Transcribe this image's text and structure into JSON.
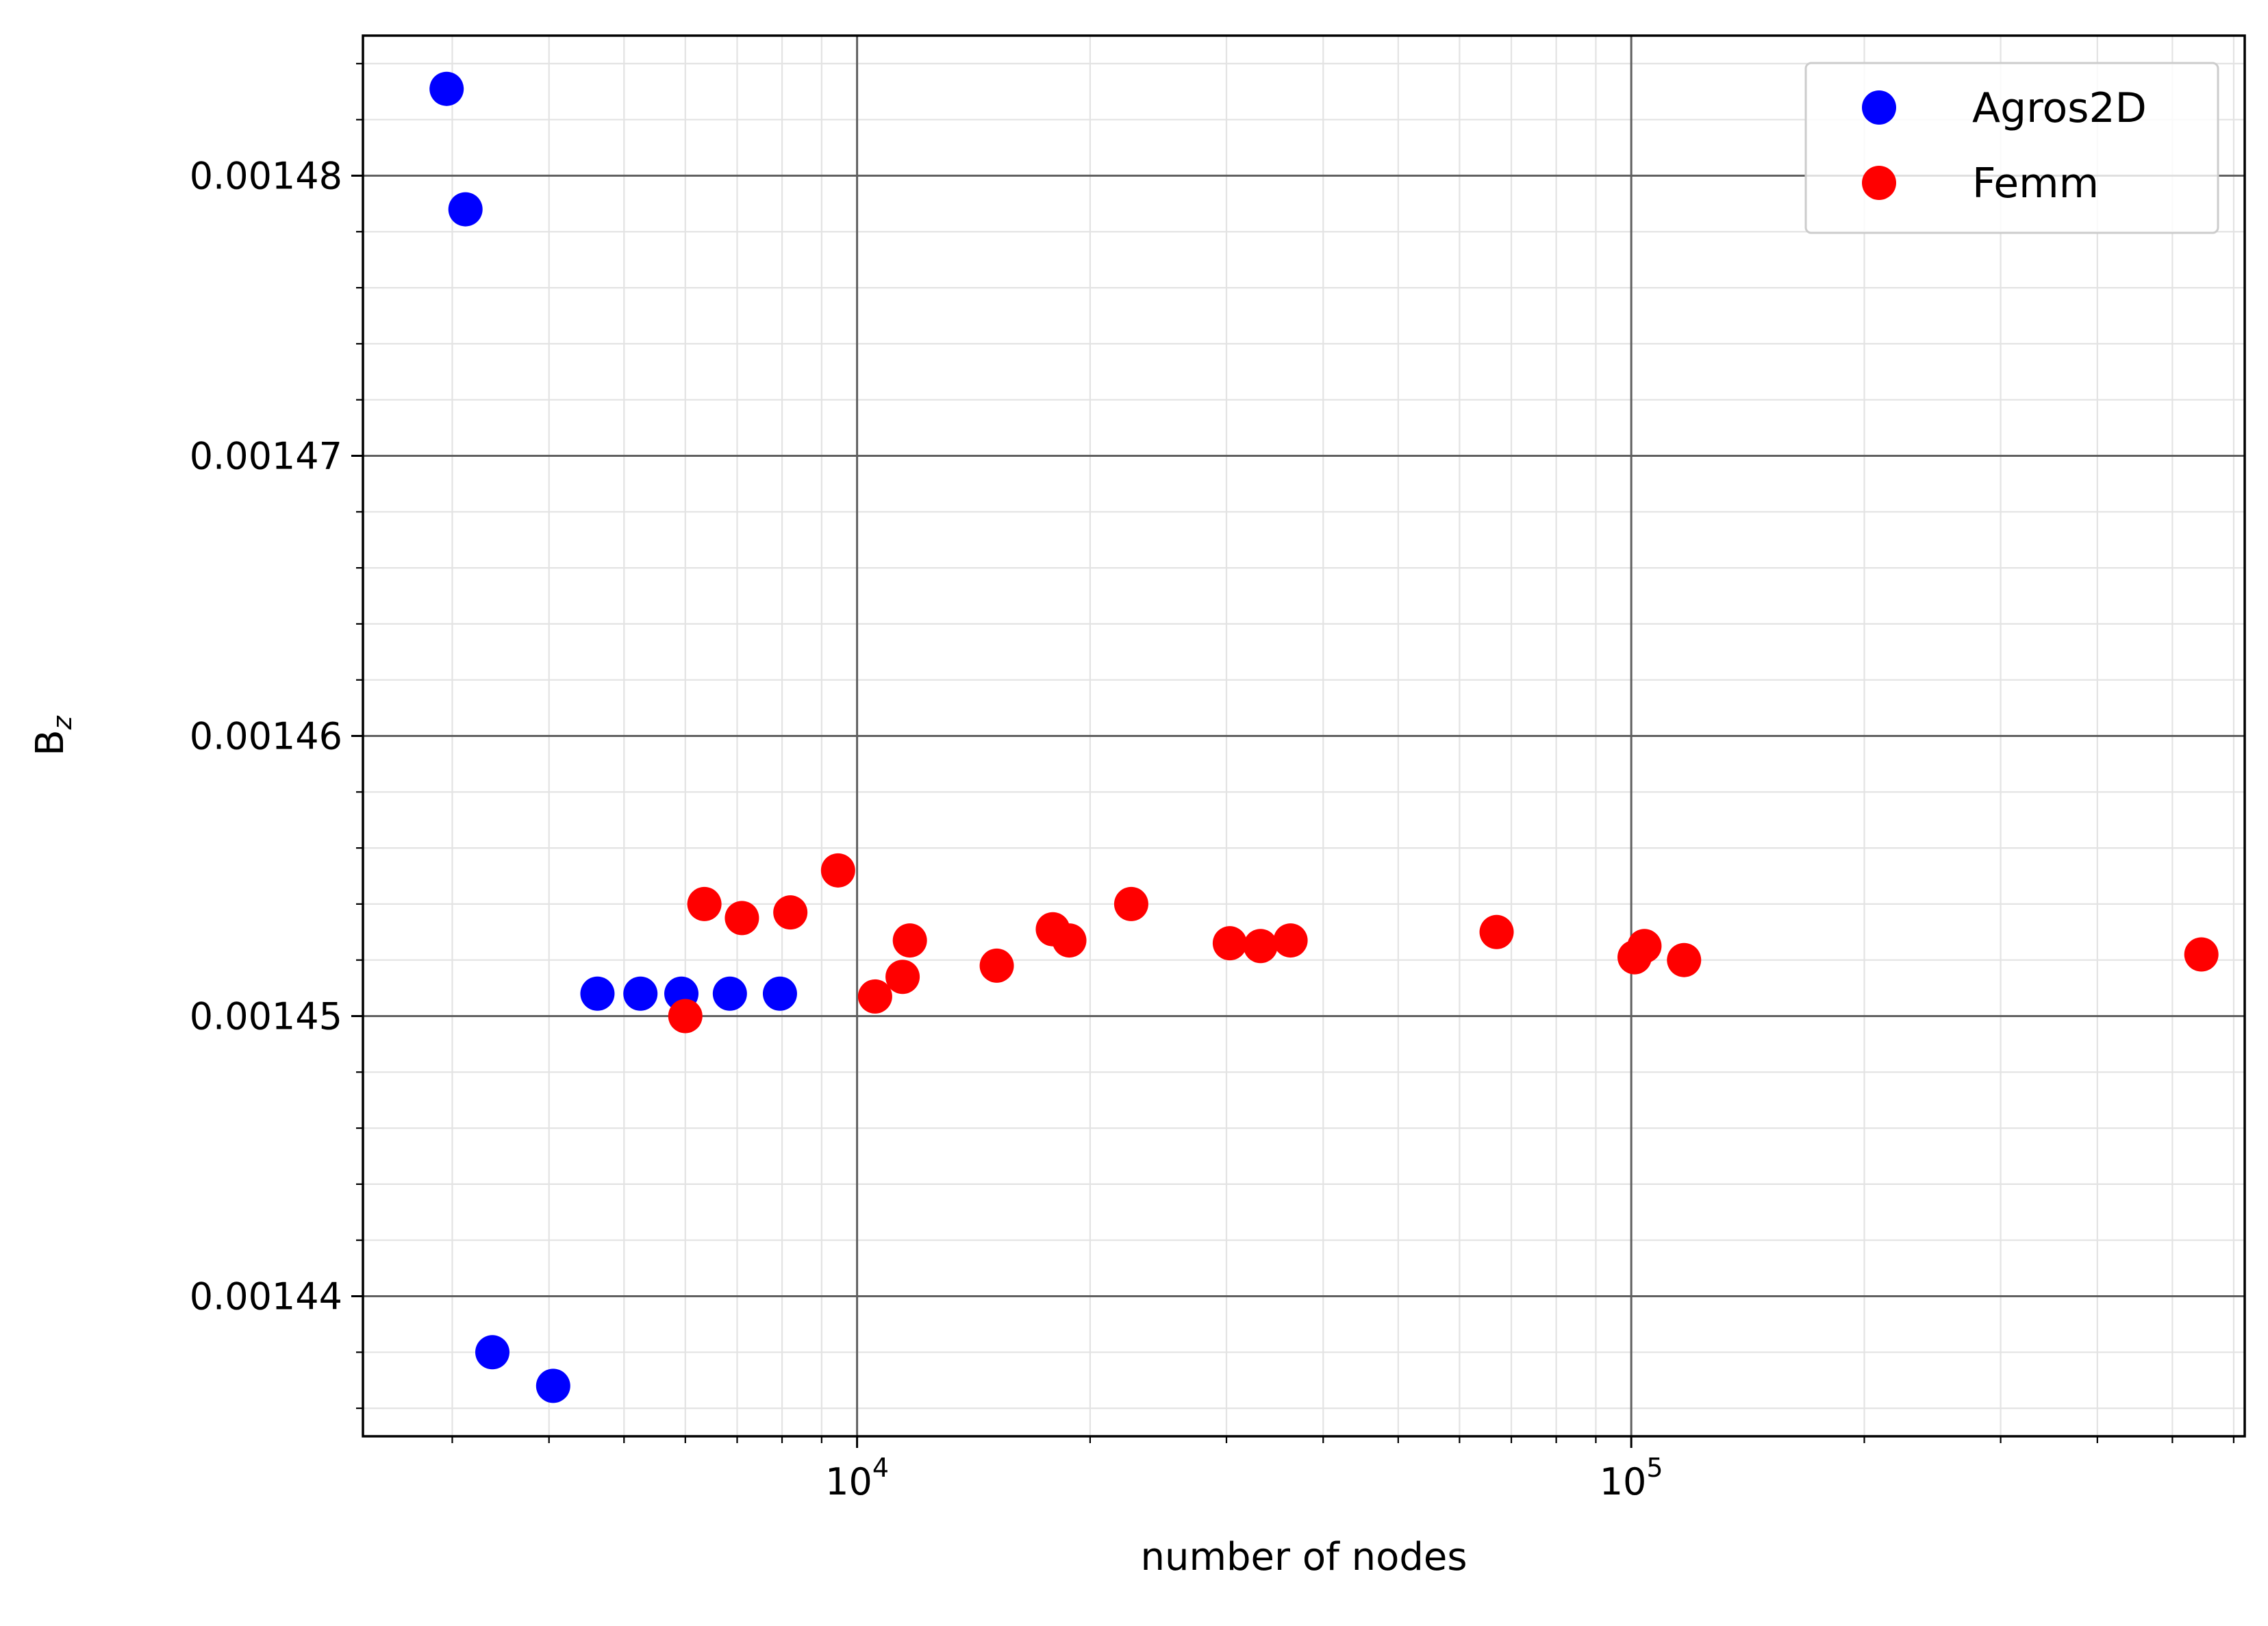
{
  "chart_data": {
    "type": "scatter",
    "xlabel": "number of nodes",
    "ylabel": "B",
    "ylabel_subscript": "z",
    "xscale": "log",
    "xlim": [
      2300,
      620000
    ],
    "ylim": [
      0.001435,
      0.001485
    ],
    "x_ticks": [
      {
        "base": "10",
        "exp": "4",
        "value": 10000
      },
      {
        "base": "10",
        "exp": "5",
        "value": 100000
      }
    ],
    "y_ticks": [
      "0.00144",
      "0.00145",
      "0.00146",
      "0.00147",
      "0.00148"
    ],
    "y_tick_values": [
      0.00144,
      0.00145,
      0.00146,
      0.00147,
      0.00148
    ],
    "grid": true,
    "legend_position": "top-right",
    "series": [
      {
        "name": "Agros2D",
        "color": "#0000ff",
        "points": [
          [
            2950,
            0.0014831
          ],
          [
            3120,
            0.0014788
          ],
          [
            3380,
            0.001438
          ],
          [
            4050,
            0.0014368
          ],
          [
            4620,
            0.0014508
          ],
          [
            5250,
            0.0014508
          ],
          [
            5930,
            0.0014508
          ],
          [
            6850,
            0.0014508
          ],
          [
            7950,
            0.0014508
          ]
        ]
      },
      {
        "name": "Femm",
        "color": "#ff0000",
        "points": [
          [
            6000,
            0.00145
          ],
          [
            6350,
            0.001454
          ],
          [
            7100,
            0.0014535
          ],
          [
            8200,
            0.0014537
          ],
          [
            9450,
            0.0014552
          ],
          [
            10550,
            0.0014507
          ],
          [
            11450,
            0.0014514
          ],
          [
            11700,
            0.0014527
          ],
          [
            15150,
            0.0014518
          ],
          [
            17900,
            0.0014531
          ],
          [
            18800,
            0.0014527
          ],
          [
            22600,
            0.001454
          ],
          [
            30300,
            0.0014526
          ],
          [
            33200,
            0.0014525
          ],
          [
            36300,
            0.0014527
          ],
          [
            67000,
            0.001453
          ],
          [
            101000,
            0.0014521
          ],
          [
            104000,
            0.0014525
          ],
          [
            117000,
            0.001452
          ],
          [
            545000,
            0.0014522
          ]
        ]
      }
    ]
  }
}
